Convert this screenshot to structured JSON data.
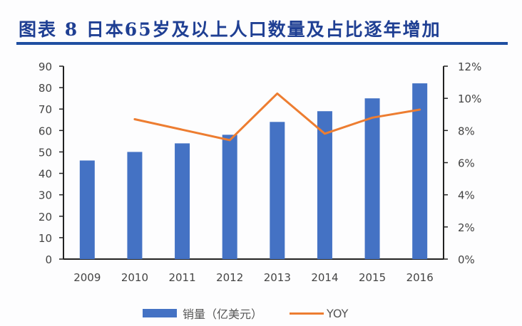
{
  "header": {
    "title": "图表 8   日本65岁及以上人口数量及占比逐年增加"
  },
  "legend": {
    "bar_label": "销量（亿美元）",
    "line_label": "YOY"
  },
  "colors": {
    "bar": "#4472c4",
    "line": "#ed7d31",
    "title": "#1f3f93"
  },
  "chart_data": {
    "type": "bar+line",
    "title": "图表 8 日本65岁及以上人口数量及占比逐年增加",
    "categories": [
      "2009",
      "2010",
      "2011",
      "2012",
      "2013",
      "2014",
      "2015",
      "2016"
    ],
    "series": [
      {
        "name": "销量（亿美元）",
        "type": "bar",
        "axis": "left",
        "values": [
          46,
          50,
          54,
          58,
          64,
          69,
          75,
          82
        ]
      },
      {
        "name": "YOY",
        "type": "line",
        "axis": "right",
        "values": [
          null,
          8.7,
          null,
          7.4,
          10.3,
          7.8,
          8.8,
          9.3
        ]
      }
    ],
    "left_axis": {
      "ylim": [
        0,
        90
      ],
      "ticks": [
        "0",
        "10",
        "20",
        "30",
        "40",
        "50",
        "60",
        "70",
        "80",
        "90"
      ]
    },
    "right_axis": {
      "ylim": [
        0,
        12
      ],
      "ticks": [
        "0%",
        "2%",
        "4%",
        "6%",
        "8%",
        "10%",
        "12%"
      ]
    },
    "xlabel": "",
    "ylabel": "",
    "grid": false,
    "legend_position": "bottom"
  }
}
